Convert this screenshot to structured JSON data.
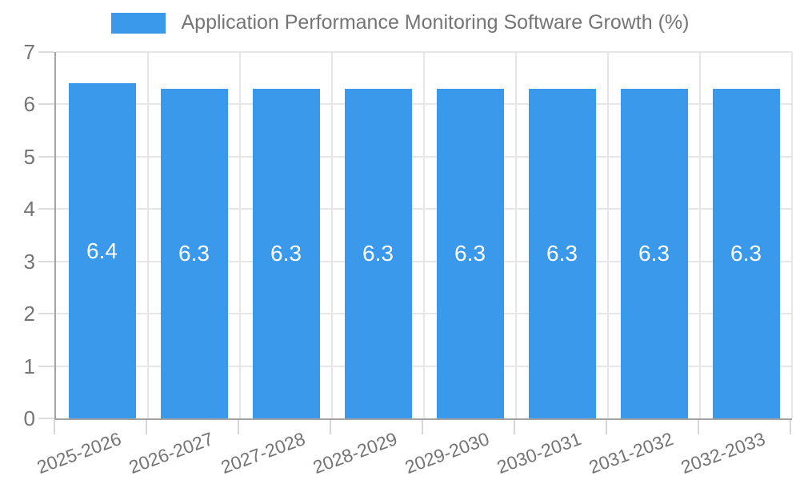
{
  "legend": {
    "position": "top"
  },
  "chart_data": {
    "type": "bar",
    "title": "Application Performance Monitoring Software Growth (%)",
    "categories": [
      "2025-2026",
      "2026-2027",
      "2027-2028",
      "2028-2029",
      "2029-2030",
      "2030-2031",
      "2031-2032",
      "2032-2033"
    ],
    "values": [
      6.4,
      6.3,
      6.3,
      6.3,
      6.3,
      6.3,
      6.3,
      6.3
    ],
    "value_labels": [
      "6.4",
      "6.3",
      "6.3",
      "6.3",
      "6.3",
      "6.3",
      "6.3",
      "6.3"
    ],
    "xlabel": "",
    "ylabel": "",
    "ylim": [
      0,
      7
    ],
    "yticks": [
      0,
      1,
      2,
      3,
      4,
      5,
      6,
      7
    ],
    "grid": true,
    "legend_position": "top",
    "x_label_rotation_deg": -20,
    "colors": {
      "bar": "#3b99ec",
      "bar_label": "#ffffff",
      "axis": "#a3a3a3",
      "grid": "#e6e6e6",
      "tick": "#d6d6d6",
      "tick_label": "#757575",
      "title": "#757575",
      "background": "#ffffff"
    }
  }
}
